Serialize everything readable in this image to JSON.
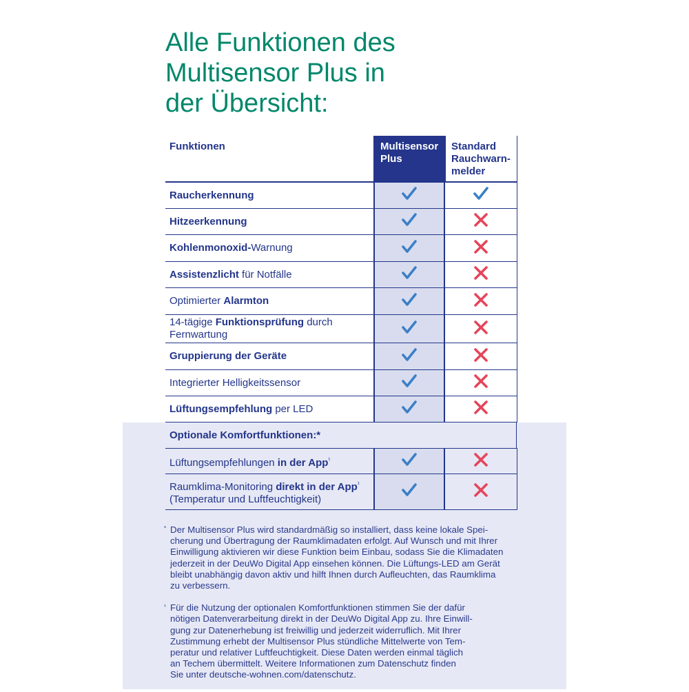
{
  "title": [
    "Alle Funktionen des",
    "Multisensor Plus in",
    "der Übersicht:"
  ],
  "header": {
    "col1": "Funktionen",
    "col2": [
      "Multisensor",
      "Plus"
    ],
    "col3": [
      "Standard",
      "Rauchwarn-",
      "melder"
    ]
  },
  "colors": {
    "title": "#00876a",
    "navy": "#23358a",
    "check": "#3a7fc8",
    "cross": "#e5455a"
  },
  "rows": [
    {
      "segs": [
        {
          "t": "Raucherkennung",
          "b": true
        }
      ],
      "plus": "check",
      "standard": "check"
    },
    {
      "segs": [
        {
          "t": "Hitzeerkennung",
          "b": true
        }
      ],
      "plus": "check",
      "standard": "cross"
    },
    {
      "segs": [
        {
          "t": "Kohlenmonoxid-",
          "b": true
        },
        {
          "t": "Warnung",
          "b": false
        }
      ],
      "plus": "check",
      "standard": "cross"
    },
    {
      "segs": [
        {
          "t": "Assistenzlicht",
          "b": true
        },
        {
          "t": " für Notfälle",
          "b": false
        }
      ],
      "plus": "check",
      "standard": "cross"
    },
    {
      "segs": [
        {
          "t": "Optimierter ",
          "b": false
        },
        {
          "t": "Alarmton",
          "b": true
        }
      ],
      "plus": "check",
      "standard": "cross"
    },
    {
      "segs": [
        {
          "t": "14-tägige ",
          "b": false
        },
        {
          "t": "Funktionsprüfung",
          "b": true
        },
        {
          "t": " durch Fernwartung",
          "b": false
        }
      ],
      "plus": "check",
      "standard": "cross",
      "tall": true
    },
    {
      "segs": [
        {
          "t": "Gruppierung der Geräte",
          "b": true
        }
      ],
      "plus": "check",
      "standard": "cross"
    },
    {
      "segs": [
        {
          "t": "Integrierter Helligkeitssensor",
          "b": false
        }
      ],
      "plus": "check",
      "standard": "cross"
    },
    {
      "segs": [
        {
          "t": "Lüftungsempfehlung",
          "b": true
        },
        {
          "t": " per LED",
          "b": false
        }
      ],
      "plus": "check",
      "standard": "cross"
    }
  ],
  "optional_header": "Optionale Komfortfunktionen:*",
  "optional_rows": [
    {
      "segs": [
        {
          "t": "Lüftungsempfehlungen ",
          "b": false
        },
        {
          "t": "in der App",
          "b": true
        },
        {
          "t": "¹",
          "b": false,
          "sup": true
        }
      ],
      "plus": "check",
      "standard": "cross"
    },
    {
      "segs": [
        {
          "t": "Raumklima-Monitoring ",
          "b": false
        },
        {
          "t": "direkt in der App",
          "b": true
        },
        {
          "t": "¹",
          "b": false,
          "sup": true
        },
        {
          "t": " (Temperatur und Luftfeuchtigkeit)",
          "b": false
        }
      ],
      "plus": "check",
      "standard": "cross",
      "tall": true
    }
  ],
  "footnotes": [
    {
      "marker": "*",
      "lines": [
        "Der Multisensor Plus wird standardmäßig so installiert, dass keine lokale Spei-",
        "cherung und Übertragung der Raumklimadaten erfolgt. Auf Wunsch und mit Ihrer",
        "Einwilligung aktivieren wir diese Funktion beim Einbau, sodass Sie die Klimadaten",
        "jederzeit in der DeuWo Digital App einsehen können. Die Lüftungs-LED am Gerät",
        "bleibt unabhängig davon aktiv und hilft Ihnen durch Aufleuchten, das Raumklima",
        "zu verbessern."
      ]
    },
    {
      "marker": "¹",
      "lines": [
        "Für die Nutzung der optionalen Komfortfunktionen stimmen Sie der dafür",
        "nötigen Datenverarbeitung direkt in der DeuWo Digital App zu. Ihre Einwill-",
        "gung zur Datenerhebung ist freiwillig und jederzeit widerruflich. Mit Ihrer",
        "Zustimmung erhebt der Multisensor Plus stündliche Mittelwerte von Tem-",
        "peratur und relativer Luftfeuchtigkeit. Diese Daten werden einmal täglich",
        "an Techem übermittelt. Weitere Informationen zum Datenschutz finden",
        "Sie unter deutsche-wohnen.com/datenschutz."
      ]
    }
  ]
}
